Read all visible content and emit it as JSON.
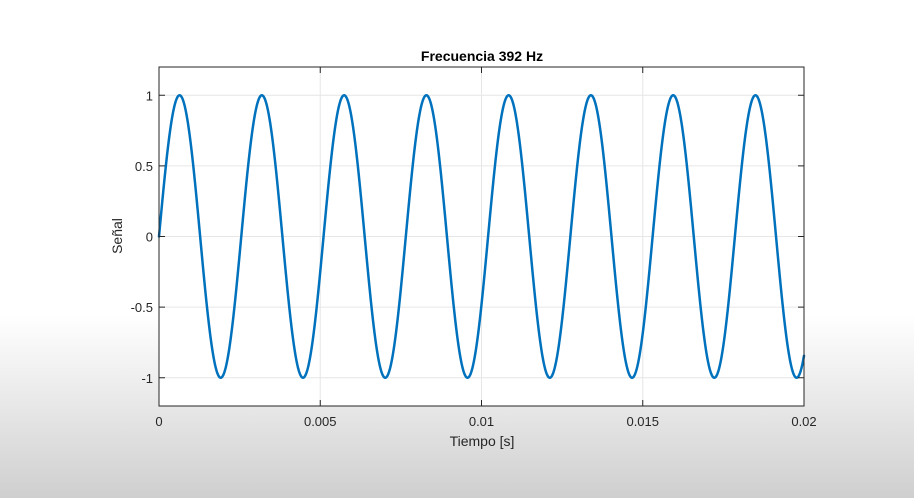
{
  "chart_data": {
    "type": "line",
    "title": "Frecuencia 392 Hz",
    "xlabel": "Tiempo [s]",
    "ylabel": "Señal",
    "xlim": [
      0,
      0.02
    ],
    "ylim": [
      -1.2,
      1.2
    ],
    "x_ticks": [
      0,
      0.005,
      0.01,
      0.015,
      0.02
    ],
    "x_tick_labels": [
      "0",
      "0.005",
      "0.01",
      "0.015",
      "0.02"
    ],
    "y_ticks": [
      1,
      0.5,
      0,
      -0.5,
      -1
    ],
    "y_tick_labels": [
      "1",
      "0.5",
      "0",
      "-0.5",
      "-1"
    ],
    "grid": true,
    "series": [
      {
        "function": "sin(2*pi*392*t)",
        "frequency_hz": 392,
        "amplitude": 1,
        "t_range": [
          0,
          0.02
        ],
        "color": "#0072BD"
      }
    ]
  },
  "colors": {
    "line": "#0072BD",
    "grid": "#e6e6e6",
    "axes": "#262626"
  }
}
